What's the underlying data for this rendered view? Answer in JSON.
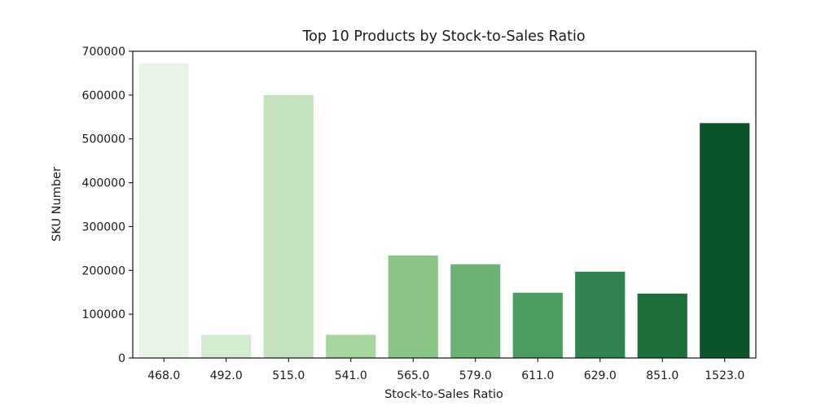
{
  "chart_data": {
    "type": "bar",
    "title": "Top 10 Products by Stock-to-Sales Ratio",
    "xlabel": "Stock-to-Sales Ratio",
    "ylabel": "SKU Number",
    "categories": [
      "468.0",
      "492.0",
      "515.0",
      "541.0",
      "565.0",
      "579.0",
      "611.0",
      "629.0",
      "851.0",
      "1523.0"
    ],
    "values": [
      673000,
      53000,
      600000,
      53000,
      234000,
      214000,
      149000,
      197000,
      147000,
      536000
    ],
    "colors": [
      "#e8f4e6",
      "#d3ebcf",
      "#c3e2bd",
      "#a6d59e",
      "#8bc586",
      "#6cb274",
      "#4b9e5f",
      "#318451",
      "#1d6f3b",
      "#0b5329"
    ],
    "ylim": [
      0,
      700000
    ],
    "yticks": [
      0,
      100000,
      200000,
      300000,
      400000,
      500000,
      600000,
      700000
    ],
    "ytick_labels": [
      "0",
      "100000",
      "200000",
      "300000",
      "400000",
      "500000",
      "600000",
      "700000"
    ],
    "grid": false
  }
}
